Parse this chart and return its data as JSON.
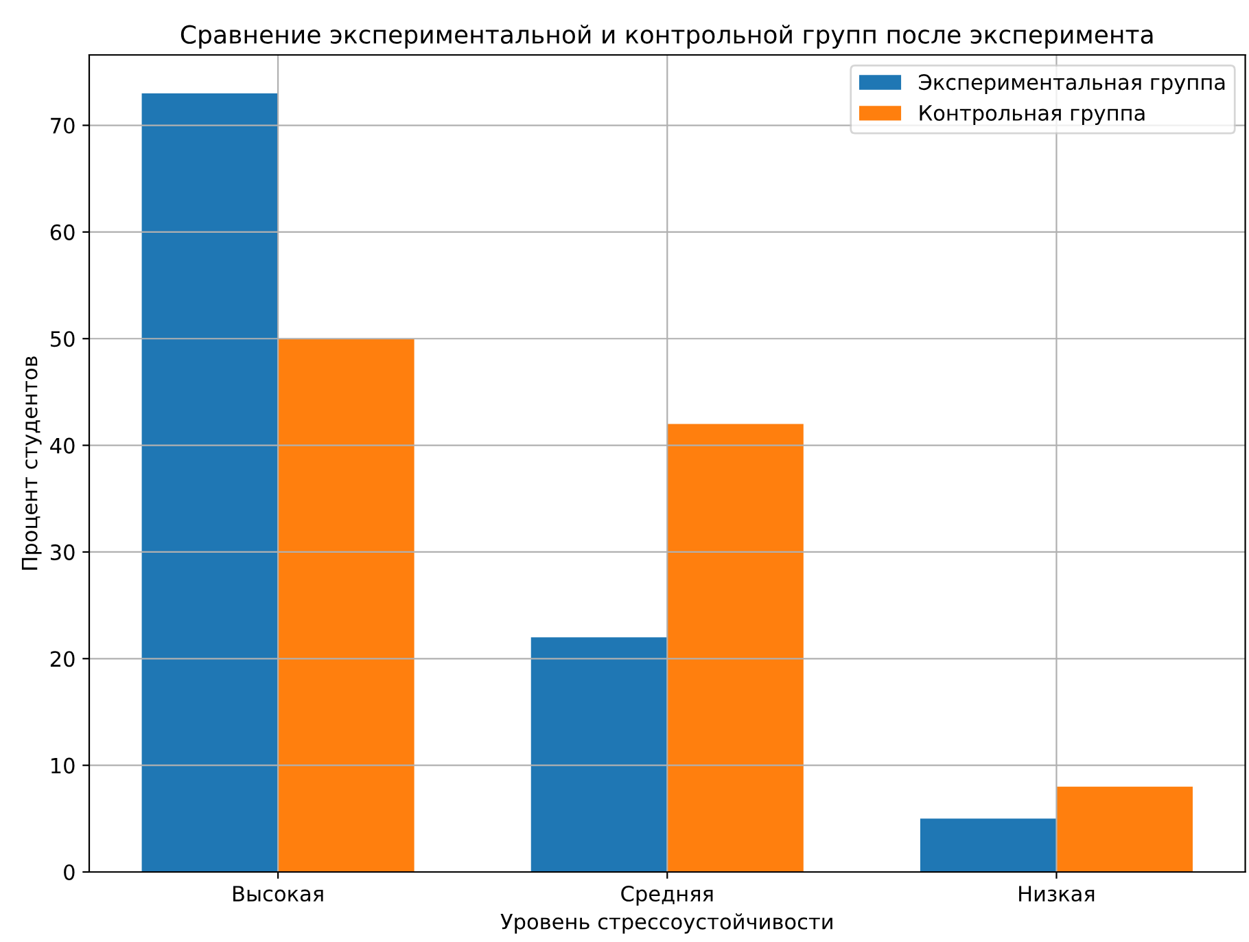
{
  "chart_data": {
    "type": "bar",
    "title": "Сравнение экспериментальной и контрольной групп после эксперимента",
    "xlabel": "Уровень стрессоустойчивости",
    "ylabel": "Процент студентов",
    "categories": [
      "Высокая",
      "Средняя",
      "Низкая"
    ],
    "series": [
      {
        "name": "Экспериментальная группа",
        "color": "#1f77b4",
        "values": [
          73,
          22,
          5
        ]
      },
      {
        "name": "Контрольная группа",
        "color": "#ff7f0e",
        "values": [
          50,
          42,
          8
        ]
      }
    ],
    "ylim": [
      0,
      76.6
    ],
    "yticks": [
      0,
      10,
      20,
      30,
      40,
      50,
      60,
      70
    ],
    "grid": true,
    "legend": "top right"
  }
}
